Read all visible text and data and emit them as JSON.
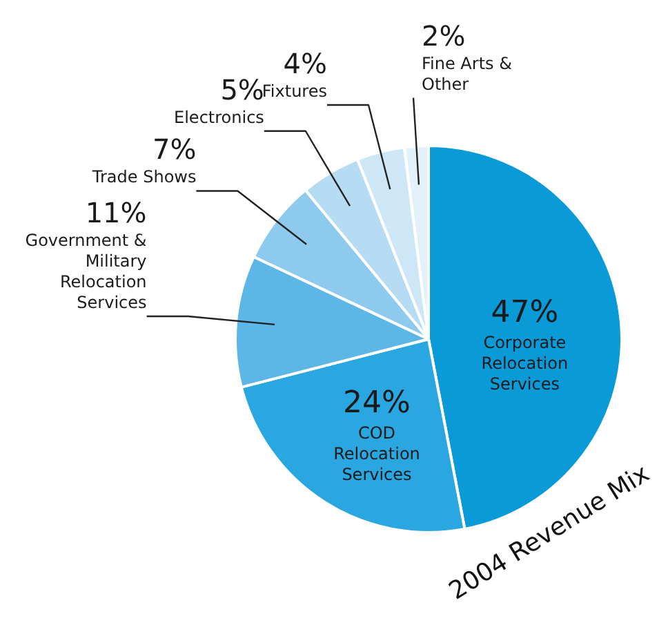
{
  "chart_data": {
    "type": "pie",
    "title": "2004 Revenue Mix",
    "categories": [
      "Corporate Relocation Services",
      "COD Relocation Services",
      "Government & Military Relocation Services",
      "Trade Shows",
      "Electronics",
      "Fixtures",
      "Fine Arts & Other"
    ],
    "values": [
      47,
      24,
      11,
      7,
      5,
      4,
      2
    ],
    "colors": [
      "#0a9ad8",
      "#2aa6e0",
      "#5cb6e6",
      "#8ec9ee",
      "#b6dcf3",
      "#cde7f7",
      "#e3f1fa"
    ],
    "value_labels": [
      "47%",
      "24%",
      "11%",
      "7%",
      "5%",
      "4%",
      "2%"
    ]
  }
}
